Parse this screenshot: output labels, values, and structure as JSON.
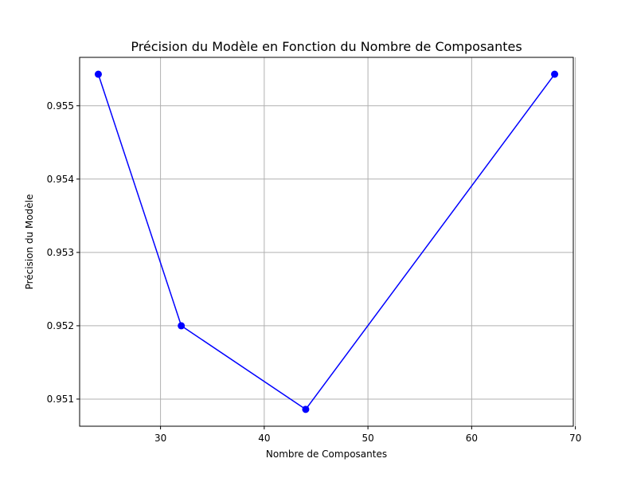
{
  "chart_data": {
    "type": "line",
    "title": "Précision du Modèle en Fonction du Nombre de Composantes",
    "xlabel": "Nombre de Composantes",
    "ylabel": "Précision du Modèle",
    "x": [
      24,
      32,
      44,
      68
    ],
    "series": [
      {
        "values": [
          0.95543,
          0.952,
          0.95086,
          0.95543
        ],
        "color": "#0000ff",
        "marker": "circle"
      }
    ],
    "xlim": [
      22.2,
      69.8
    ],
    "ylim": [
      0.95063,
      0.95566
    ],
    "xticks": [
      30,
      40,
      50,
      60,
      70
    ],
    "xtick_labels": [
      "30",
      "40",
      "50",
      "60",
      "70"
    ],
    "yticks": [
      0.951,
      0.952,
      0.953,
      0.954,
      0.955
    ],
    "ytick_labels": [
      "0.951",
      "0.952",
      "0.953",
      "0.954",
      "0.955"
    ],
    "grid": true,
    "grid_color": "#b0b0b0"
  }
}
